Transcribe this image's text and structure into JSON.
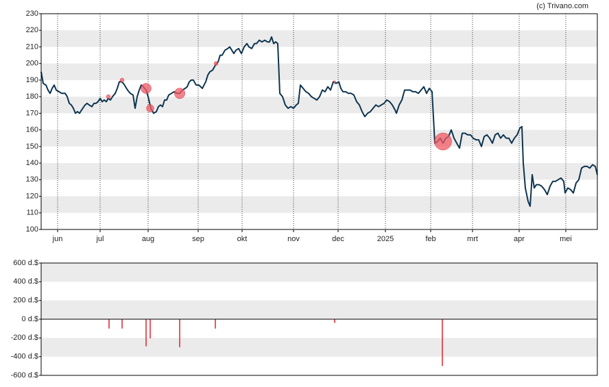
{
  "credit": "(c) Trivano.com",
  "chart_data": [
    {
      "type": "line",
      "xlim": [
        0,
        811
      ],
      "ylim": [
        100,
        230
      ],
      "yticks": [
        100,
        110,
        120,
        130,
        140,
        150,
        160,
        170,
        180,
        190,
        200,
        210,
        220,
        230
      ],
      "xticks": [
        {
          "value": 24,
          "label": "jun"
        },
        {
          "value": 86,
          "label": "jul"
        },
        {
          "value": 156,
          "label": "aug"
        },
        {
          "value": 229,
          "label": "sep"
        },
        {
          "value": 293,
          "label": "okt"
        },
        {
          "value": 368,
          "label": "nov"
        },
        {
          "value": 433,
          "label": "dec"
        },
        {
          "value": 502,
          "label": "2025"
        },
        {
          "value": 568,
          "label": "feb"
        },
        {
          "value": 629,
          "label": "mrt"
        },
        {
          "value": 697,
          "label": "apr"
        },
        {
          "value": 765,
          "label": "mei"
        }
      ],
      "bands": true,
      "band_color": "#ebebeb",
      "series": [
        {
          "color": "#0d3450",
          "x": [
            0,
            3,
            7,
            10,
            13,
            16,
            19,
            22,
            26,
            30,
            35,
            38,
            41,
            44,
            47,
            50,
            53,
            56,
            59,
            64,
            67,
            70,
            74,
            77,
            80,
            83,
            86,
            89,
            92,
            95,
            98,
            101,
            104,
            108,
            111,
            114,
            117,
            120,
            123,
            126,
            130,
            134,
            137,
            140,
            143,
            146,
            149,
            153,
            156,
            160,
            164,
            168,
            171,
            174,
            177,
            180,
            183,
            186,
            190,
            194,
            198,
            202,
            206,
            210,
            213,
            216,
            219,
            222,
            226,
            230,
            235,
            240,
            243,
            246,
            250,
            254,
            258,
            261,
            264,
            268,
            272,
            275,
            278,
            281,
            284,
            288,
            292,
            296,
            300,
            303,
            307,
            311,
            314,
            318,
            322,
            326,
            330,
            333,
            336,
            339,
            342,
            345,
            348,
            352,
            356,
            360,
            364,
            368,
            372,
            375,
            378,
            382,
            386,
            390,
            394,
            398,
            402,
            406,
            410,
            414,
            418,
            422,
            426,
            430,
            434,
            437,
            440,
            444,
            448,
            452,
            456,
            460,
            464,
            468,
            472,
            476,
            480,
            484,
            488,
            492,
            496,
            500,
            504,
            508,
            512,
            516,
            518,
            522,
            526,
            530,
            534,
            538,
            542,
            546,
            550,
            554,
            558,
            562,
            566,
            570,
            574,
            578,
            582,
            586,
            590,
            594,
            598,
            602,
            606,
            610,
            614,
            618,
            622,
            626,
            630,
            634,
            638,
            642,
            646,
            650,
            654,
            658,
            662,
            666,
            670,
            674,
            678,
            682,
            686,
            690,
            694,
            698,
            701,
            703,
            706,
            710,
            713,
            716,
            719,
            722,
            726,
            730,
            734,
            738,
            742,
            746,
            750,
            754,
            758,
            762,
            764,
            768,
            772,
            776,
            780,
            784,
            788,
            792,
            796,
            800,
            804,
            808,
            811
          ],
          "values": [
            195,
            188,
            187,
            184,
            182,
            185,
            187,
            184,
            183,
            182,
            182,
            180,
            176,
            175,
            173,
            170,
            171,
            170,
            172,
            175,
            176,
            175,
            174,
            176,
            176,
            177,
            179,
            177,
            178,
            177,
            179,
            178,
            180,
            182,
            185,
            189,
            189,
            188,
            186,
            184,
            182,
            181,
            173,
            180,
            184,
            187,
            186,
            184,
            180,
            173,
            170,
            171,
            174,
            175,
            174,
            178,
            178,
            181,
            182,
            183,
            182,
            182,
            184,
            185,
            186,
            189,
            190,
            190,
            187,
            187,
            185,
            189,
            193,
            195,
            196,
            199,
            201,
            205,
            205,
            208,
            209,
            210,
            208,
            206,
            208,
            209,
            206,
            210,
            212,
            210,
            209,
            212,
            212,
            214,
            213,
            214,
            213,
            213,
            216,
            212,
            213,
            212,
            182,
            180,
            175,
            173,
            174,
            173,
            175,
            176,
            187,
            185,
            183,
            182,
            180,
            179,
            178,
            180,
            184,
            183,
            186,
            184,
            189,
            188,
            189,
            185,
            183,
            183,
            182,
            182,
            181,
            177,
            175,
            171,
            168,
            170,
            171,
            173,
            175,
            174,
            175,
            176,
            178,
            177,
            175,
            172,
            170,
            175,
            178,
            184,
            184,
            184,
            183,
            183,
            182,
            184,
            186,
            182,
            185,
            183,
            152,
            153,
            155,
            152,
            155,
            156,
            160,
            155,
            152,
            149,
            158,
            158,
            157,
            157,
            155,
            154,
            154,
            150,
            156,
            157,
            155,
            152,
            157,
            158,
            155,
            157,
            155,
            155,
            152,
            155,
            157,
            161,
            162,
            140,
            125,
            117,
            114,
            133,
            125,
            127,
            127,
            126,
            124,
            121,
            126,
            129,
            129,
            130,
            131,
            129,
            122,
            125,
            124,
            122,
            128,
            130,
            137,
            138,
            138,
            137,
            139,
            138,
            133
          ]
        }
      ],
      "bubbles": {
        "color": "#f05a64",
        "x": [
          98,
          118,
          153,
          159,
          202,
          255,
          428,
          586
        ],
        "y": [
          180,
          190,
          185,
          173,
          182,
          200,
          189,
          153
        ]
      }
    },
    {
      "type": "bar",
      "color": "#e0202f",
      "xlim": [
        0,
        811
      ],
      "ylim": [
        -600,
        600
      ],
      "yticks": [
        {
          "value": -600,
          "label": "-600 d.$"
        },
        {
          "value": -400,
          "label": "-400 d.$"
        },
        {
          "value": -200,
          "label": "-200 d.$"
        },
        {
          "value": 0,
          "label": "0 d.$"
        },
        {
          "value": 200,
          "label": "200 d.$"
        },
        {
          "value": 400,
          "label": "400 d.$"
        },
        {
          "value": 600,
          "label": "600 d.$"
        }
      ],
      "bands": true,
      "band_color": "#ebebeb",
      "x": [
        99,
        118,
        153,
        159,
        202,
        254,
        428,
        585
      ],
      "values": [
        -100,
        -100,
        -290,
        -205,
        -300,
        -100,
        -40,
        -500
      ]
    }
  ]
}
